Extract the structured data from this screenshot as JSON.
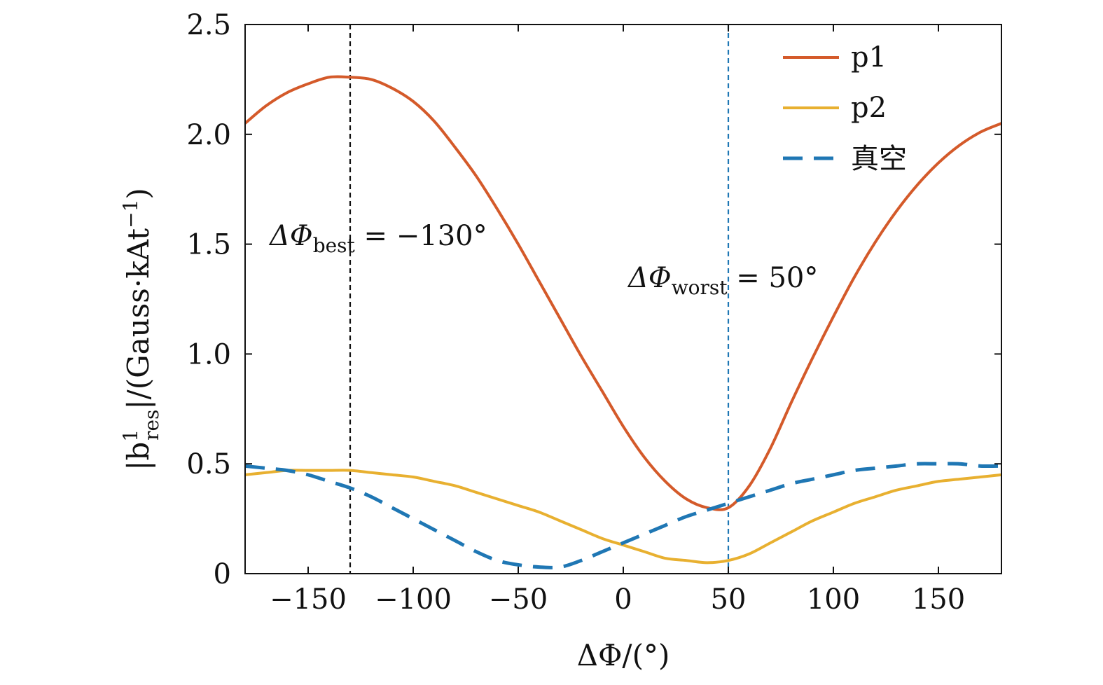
{
  "chart_data": {
    "type": "line",
    "title": "",
    "xlabel": "ΔΦ/(°)",
    "ylabel": "|b",
    "ylabel_sup": "1",
    "ylabel_sub": "res",
    "ylabel_rest": "|/(Gauss·kAt",
    "ylabel_exp": "−1",
    "ylabel_close": ")",
    "xlim": [
      -180,
      180
    ],
    "ylim": [
      0,
      2.5
    ],
    "xticks": [
      -150,
      -100,
      -50,
      0,
      50,
      100,
      150
    ],
    "xtick_labels": [
      "−150",
      "−100",
      "−50",
      "0",
      "50",
      "100",
      "150"
    ],
    "yticks": [
      0,
      0.5,
      1.0,
      1.5,
      2.0,
      2.5
    ],
    "ytick_labels": [
      "0",
      "0.5",
      "1.0",
      "1.5",
      "2.0",
      "2.5"
    ],
    "grid": false,
    "legend_position": "top-right",
    "x": [
      -180,
      -170,
      -160,
      -150,
      -140,
      -130,
      -120,
      -110,
      -100,
      -90,
      -80,
      -70,
      -60,
      -50,
      -40,
      -30,
      -20,
      -10,
      0,
      10,
      20,
      30,
      40,
      50,
      60,
      70,
      80,
      90,
      100,
      110,
      120,
      130,
      140,
      150,
      160,
      170,
      180
    ],
    "series": [
      {
        "name": "p1",
        "color": "#d45a2a",
        "dash": "solid",
        "values": [
          2.05,
          2.13,
          2.19,
          2.23,
          2.26,
          2.26,
          2.25,
          2.21,
          2.15,
          2.06,
          1.94,
          1.81,
          1.66,
          1.5,
          1.33,
          1.16,
          0.99,
          0.83,
          0.67,
          0.53,
          0.42,
          0.34,
          0.3,
          0.3,
          0.4,
          0.57,
          0.78,
          0.98,
          1.17,
          1.35,
          1.51,
          1.65,
          1.77,
          1.87,
          1.95,
          2.01,
          2.05
        ]
      },
      {
        "name": "p2",
        "color": "#e8b030",
        "dash": "solid",
        "values": [
          0.45,
          0.46,
          0.47,
          0.47,
          0.47,
          0.47,
          0.46,
          0.45,
          0.44,
          0.42,
          0.4,
          0.37,
          0.34,
          0.31,
          0.28,
          0.24,
          0.2,
          0.16,
          0.13,
          0.1,
          0.07,
          0.06,
          0.05,
          0.06,
          0.09,
          0.14,
          0.19,
          0.24,
          0.28,
          0.32,
          0.35,
          0.38,
          0.4,
          0.42,
          0.43,
          0.44,
          0.45
        ]
      },
      {
        "name": "真空",
        "color": "#1f77b4",
        "dash": "dashed",
        "values": [
          0.49,
          0.48,
          0.47,
          0.45,
          0.42,
          0.39,
          0.35,
          0.3,
          0.25,
          0.2,
          0.15,
          0.1,
          0.06,
          0.04,
          0.03,
          0.03,
          0.06,
          0.1,
          0.14,
          0.18,
          0.22,
          0.26,
          0.29,
          0.32,
          0.35,
          0.38,
          0.41,
          0.43,
          0.45,
          0.47,
          0.48,
          0.49,
          0.5,
          0.5,
          0.5,
          0.49,
          0.49
        ]
      }
    ],
    "reference_lines": [
      {
        "x": -130,
        "color": "#111111",
        "label_prefix": "ΔΦ",
        "label_sub": "best",
        "label_suffix": " = −130°"
      },
      {
        "x": 50,
        "color": "#1f77b4",
        "label_prefix": "ΔΦ",
        "label_sub": "worst",
        "label_suffix": " = 50°"
      }
    ]
  }
}
